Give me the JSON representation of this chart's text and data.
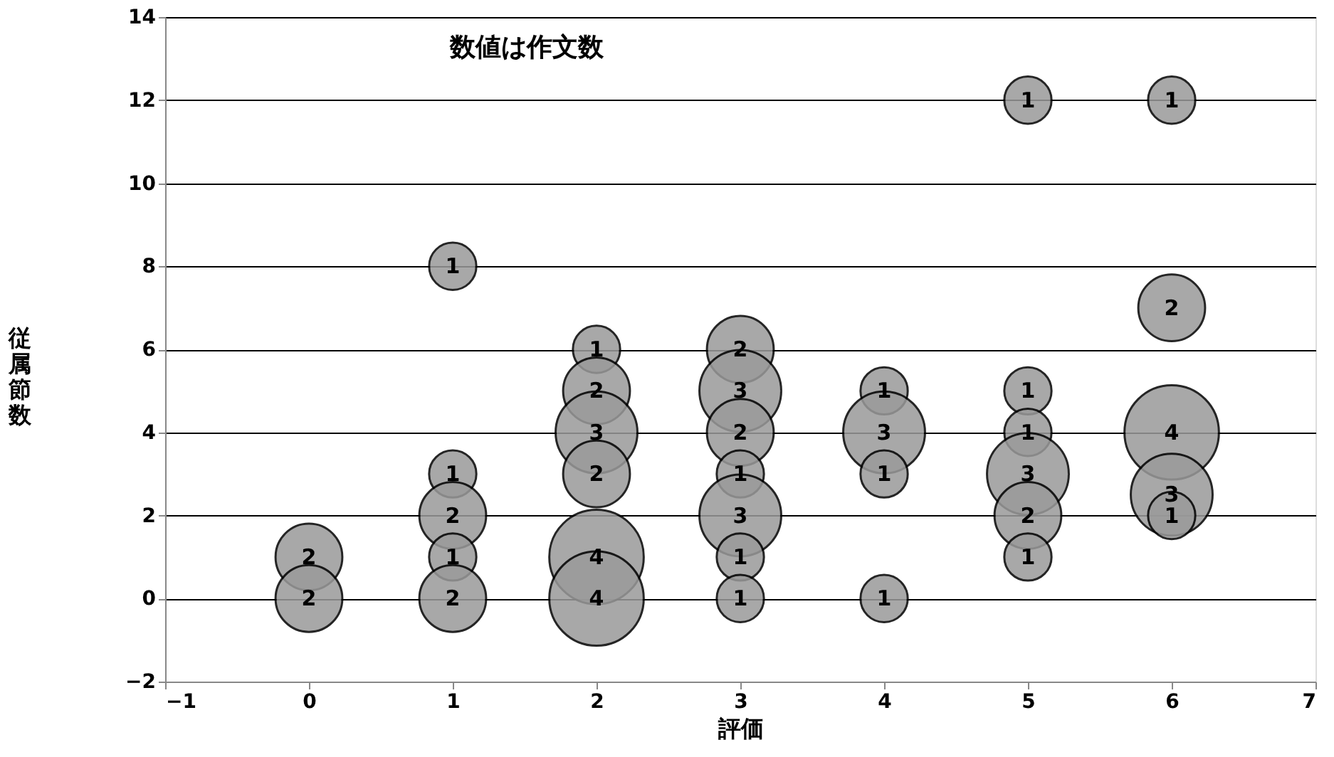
{
  "chart_data": {
    "type": "bubble",
    "xlabel": "評価",
    "ylabel": "従属節数",
    "annotations": [
      "数値は作文数"
    ],
    "x": [
      0,
      0,
      1,
      1,
      1,
      1,
      1,
      2,
      2,
      2,
      2,
      2,
      2,
      3,
      3,
      3,
      3,
      3,
      3,
      3,
      4,
      4,
      4,
      4,
      5,
      5,
      5,
      5,
      5,
      5,
      6,
      6,
      6,
      6,
      6
    ],
    "values": [
      1,
      0,
      8,
      3,
      2,
      1,
      0,
      6,
      5,
      4,
      3,
      1,
      0,
      6,
      5,
      4,
      3,
      2,
      1,
      0,
      5,
      4,
      3,
      0,
      12,
      5,
      4,
      3,
      2,
      1,
      12,
      7,
      4,
      2.5,
      2
    ],
    "sizes": [
      2,
      2,
      1,
      1,
      2,
      1,
      2,
      1,
      2,
      3,
      2,
      4,
      4,
      2,
      3,
      2,
      1,
      3,
      1,
      1,
      1,
      3,
      1,
      1,
      1,
      1,
      1,
      3,
      2,
      1,
      1,
      2,
      4,
      3,
      1
    ],
    "value_labels": [
      "2",
      "2",
      "1",
      "1",
      "2",
      "1",
      "2",
      "1",
      "2",
      "3",
      "2",
      "4",
      "4",
      "2",
      "3",
      "2",
      "1",
      "3",
      "1",
      "1",
      "1",
      "3",
      "1",
      "1",
      "1",
      "1",
      "1",
      "3",
      "2",
      "1",
      "1",
      "2",
      "4",
      "3",
      "1"
    ],
    "color": "#9a9a9a",
    "xlim": [
      -1,
      7
    ],
    "xticks": [
      -1,
      0,
      1,
      2,
      3,
      4,
      5,
      6,
      7
    ],
    "ylim": [
      -2,
      14
    ],
    "yticks": [
      -2,
      0,
      2,
      4,
      6,
      8,
      10,
      12,
      14
    ],
    "grid": "y",
    "legend": false
  }
}
